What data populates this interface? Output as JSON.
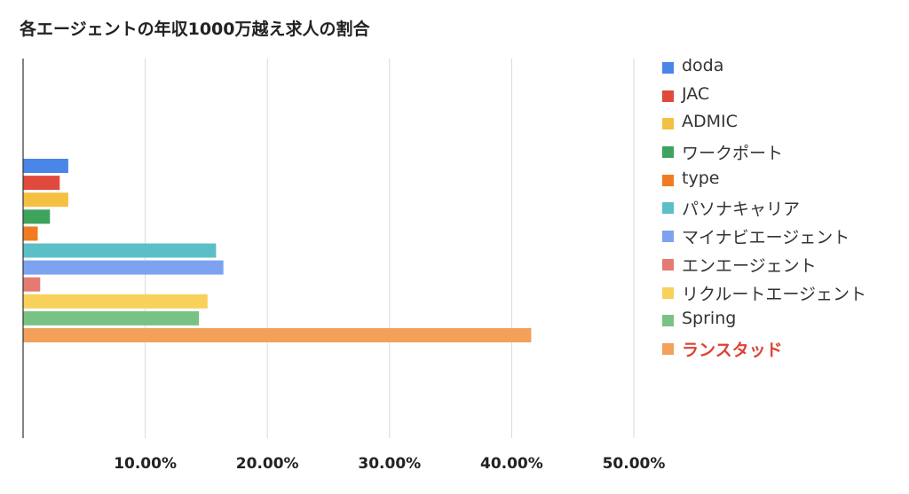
{
  "chart_data": {
    "type": "bar",
    "orientation": "horizontal",
    "title": "各エージェントの年収1000万越え求人の割合",
    "xlabel": "",
    "ylabel": "",
    "xlim": [
      0,
      0.5
    ],
    "x_ticks": [
      0.1,
      0.2,
      0.3,
      0.4,
      0.5
    ],
    "x_tick_labels": [
      "10.00%",
      "20.00%",
      "30.00%",
      "40.00%",
      "50.00%"
    ],
    "grid": true,
    "legend_position": "right",
    "series": [
      {
        "name": "doda",
        "value": 0.037,
        "color": "#4a86e8"
      },
      {
        "name": "JAC",
        "value": 0.03,
        "color": "#e04a3c"
      },
      {
        "name": "ADMIC",
        "value": 0.037,
        "color": "#f4c042"
      },
      {
        "name": "ワークポート",
        "value": 0.022,
        "color": "#3da35d"
      },
      {
        "name": "type",
        "value": 0.012,
        "color": "#f07b22"
      },
      {
        "name": "パソナキャリア",
        "value": 0.158,
        "color": "#5bbfc8"
      },
      {
        "name": "マイナビエージェント",
        "value": 0.164,
        "color": "#7da3f0"
      },
      {
        "name": "エンエージェント",
        "value": 0.014,
        "color": "#e57a72"
      },
      {
        "name": "リクルートエージェント",
        "value": 0.151,
        "color": "#f7d159"
      },
      {
        "name": "Spring",
        "value": 0.144,
        "color": "#79c285"
      },
      {
        "name": "ランスタッド",
        "value": 0.416,
        "color": "#f2a05a",
        "highlight": true
      }
    ]
  }
}
